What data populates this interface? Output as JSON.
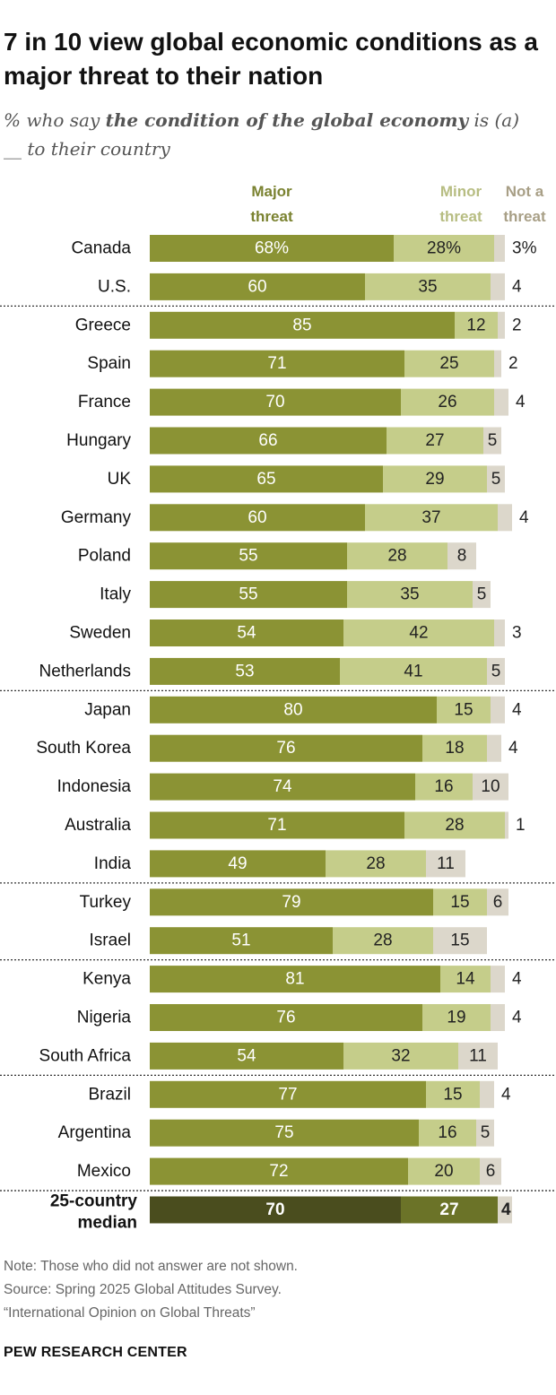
{
  "title": "7 in 10 view global economic conditions as a major threat to their nation",
  "subtitle": {
    "pre": "% who say ",
    "emphasis": "the condition of the global economy",
    "post": " is (a) __ to their country"
  },
  "legend": {
    "major": "Major threat",
    "minor": "Minor threat",
    "not": "Not a threat"
  },
  "colors": {
    "major": "#8b9334",
    "minor": "#c5cd8a",
    "not": "#dcd7cb",
    "median_major": "#4a4d1e",
    "median_minor": "#6b7328",
    "legend_major": "#7a8230",
    "legend_minor": "#b7bd82",
    "legend_not": "#a89f86"
  },
  "chart_data": {
    "type": "bar",
    "orientation": "horizontal",
    "stacked": true,
    "categories": [
      "Canada",
      "U.S.",
      "Greece",
      "Spain",
      "France",
      "Hungary",
      "UK",
      "Germany",
      "Poland",
      "Italy",
      "Sweden",
      "Netherlands",
      "Japan",
      "South Korea",
      "Indonesia",
      "Australia",
      "India",
      "Turkey",
      "Israel",
      "Kenya",
      "Nigeria",
      "South Africa",
      "Brazil",
      "Argentina",
      "Mexico",
      "25-country median"
    ],
    "series": [
      {
        "name": "Major threat",
        "values": [
          68,
          60,
          85,
          71,
          70,
          66,
          65,
          60,
          55,
          55,
          54,
          53,
          80,
          76,
          74,
          71,
          49,
          79,
          51,
          81,
          76,
          54,
          77,
          75,
          72,
          70
        ]
      },
      {
        "name": "Minor threat",
        "values": [
          28,
          35,
          12,
          25,
          26,
          27,
          29,
          37,
          28,
          35,
          42,
          41,
          15,
          18,
          16,
          28,
          28,
          15,
          28,
          14,
          19,
          32,
          15,
          16,
          20,
          27
        ]
      },
      {
        "name": "Not a threat",
        "values": [
          3,
          4,
          2,
          2,
          4,
          5,
          5,
          4,
          8,
          5,
          3,
          5,
          4,
          4,
          10,
          1,
          11,
          6,
          15,
          4,
          4,
          11,
          4,
          5,
          6,
          4
        ]
      }
    ],
    "value_labels": {
      "major": [
        "68%",
        "60",
        "85",
        "71",
        "70",
        "66",
        "65",
        "60",
        "55",
        "55",
        "54",
        "53",
        "80",
        "76",
        "74",
        "71",
        "49",
        "79",
        "51",
        "81",
        "76",
        "54",
        "77",
        "75",
        "72",
        "70"
      ],
      "minor": [
        "28%",
        "35",
        "12",
        "25",
        "26",
        "27",
        "29",
        "37",
        "28",
        "35",
        "42",
        "41",
        "15",
        "18",
        "16",
        "28",
        "28",
        "15",
        "28",
        "14",
        "19",
        "32",
        "15",
        "16",
        "20",
        "27"
      ],
      "not": [
        "3%",
        "4",
        "2",
        "2",
        "4",
        "5",
        "5",
        "4",
        "8",
        "5",
        "3",
        "5",
        "4",
        "4",
        "10",
        "1",
        "11",
        "6",
        "15",
        "4",
        "4",
        "11",
        "4",
        "5",
        "6",
        "4"
      ]
    },
    "group_breaks_after": [
      "U.S.",
      "Netherlands",
      "India",
      "Israel",
      "South Africa",
      "Mexico"
    ],
    "median_category": "25-country median",
    "xlim": [
      0,
      100
    ],
    "grid": false,
    "legend_position": "top"
  },
  "notes": {
    "note": "Note: Those who did not answer are not shown.",
    "source": "Source: Spring 2025 Global Attitudes Survey.",
    "report": "“International Opinion on Global Threats”"
  },
  "brand": "PEW RESEARCH CENTER"
}
